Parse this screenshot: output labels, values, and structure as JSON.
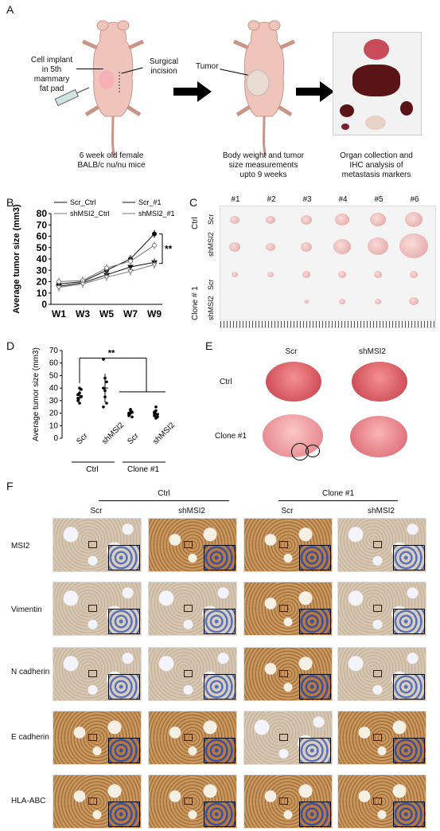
{
  "panels": {
    "A": "A",
    "B": "B",
    "C": "C",
    "D": "D",
    "E": "E",
    "F": "F"
  },
  "panelA": {
    "cell_implant": "Cell implant\nin 5th\nmammary\nfat pad",
    "surgical_incision": "Surgical\nincision",
    "tumor": "Tumor",
    "step1": "6 week old female\nBALB/c nu/nu mice",
    "step2": "Body weight and tumor\nsize measurements\nupto 9 weeks",
    "step3": "Organ collection and\nIHC analysis of\nmetastasis markers"
  },
  "chart_data": [
    {
      "type": "line",
      "panel": "B",
      "ylabel": "Average tumor size (mm3)",
      "categories": [
        "W1",
        "W3",
        "W5",
        "W7",
        "W9"
      ],
      "ylim": [
        0,
        80
      ],
      "yticks": [
        0,
        10,
        20,
        30,
        40,
        50,
        60,
        70,
        80
      ],
      "series": [
        {
          "name": "Scr_Ctrl",
          "values": [
            18,
            20,
            30,
            40,
            62
          ]
        },
        {
          "name": "Scr_#1",
          "values": [
            16,
            19,
            26,
            33,
            37
          ]
        },
        {
          "name": "shMSI2_Ctrl",
          "values": [
            20,
            21,
            32,
            38,
            52
          ]
        },
        {
          "name": "shMSI2_#1",
          "values": [
            15,
            18,
            24,
            29,
            35
          ]
        }
      ],
      "annotation": "**"
    },
    {
      "type": "scatter",
      "panel": "D",
      "ylabel": "Average tumor size (mm3)",
      "ylim": [
        0,
        70
      ],
      "yticks": [
        0,
        10,
        20,
        30,
        40,
        50,
        60,
        70
      ],
      "categories": [
        "Scr",
        "shMSI2",
        "Scr",
        "shMSI2"
      ],
      "groups": [
        "Ctrl",
        "Clone #1"
      ],
      "series": [
        {
          "group": "Scr",
          "values": [
            32,
            36,
            39,
            30,
            28,
            33,
            35,
            40
          ]
        },
        {
          "group": "shMSI2",
          "values": [
            63,
            48,
            45,
            40,
            33,
            28,
            25,
            38
          ]
        },
        {
          "group": "Scr",
          "values": [
            19,
            20,
            21,
            18,
            22,
            17,
            20,
            23
          ]
        },
        {
          "group": "shMSI2",
          "values": [
            18,
            22,
            19,
            20,
            25,
            17,
            21,
            16
          ]
        }
      ],
      "annotation": "**"
    }
  ],
  "panelC": {
    "cols": [
      "#1",
      "#2",
      "#3",
      "#4",
      "#5",
      "#6"
    ],
    "row_scr": "Scr",
    "row_sh": "shMSI2",
    "group_ctrl": "Ctrl",
    "group_clone": "Clone # 1"
  },
  "panelE": {
    "col1": "Scr",
    "col2": "shMSI2",
    "row1": "Ctrl",
    "row2": "Clone #1"
  },
  "panelF": {
    "group1": "Ctrl",
    "group2": "Clone #1",
    "cols": [
      "Scr",
      "shMSI2",
      "Scr",
      "shMSI2"
    ],
    "rows": [
      "MSI2",
      "Vimentin",
      "N cadherin",
      "E cadherin",
      "HLA-ABC"
    ]
  },
  "colors": {
    "tissue": "#d6c7b5",
    "dab": "#a86f36",
    "lung": "#e06a6a",
    "tumor_pink": "#f2c7c4"
  }
}
